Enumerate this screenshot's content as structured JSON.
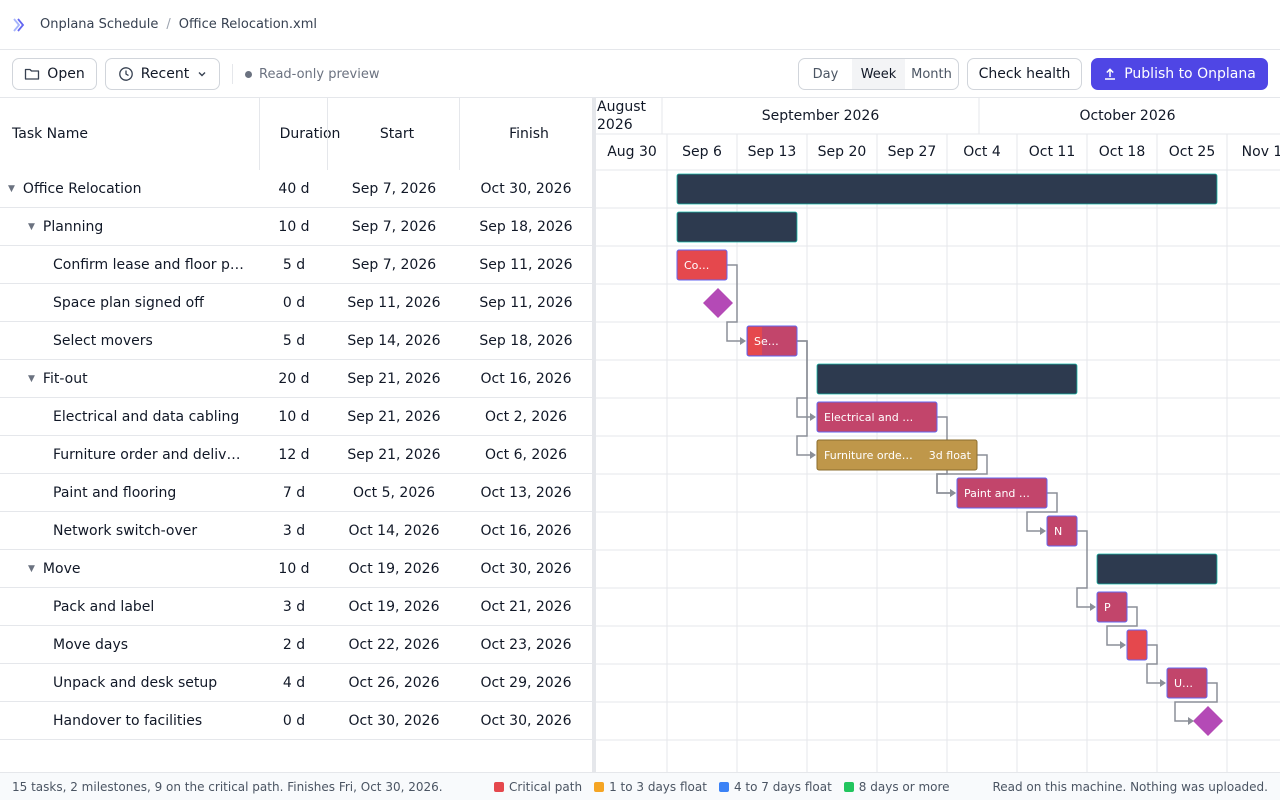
{
  "breadcrumb": {
    "app": "Onplana Schedule",
    "file": "Office Relocation.xml"
  },
  "toolbar": {
    "open_label": "Open",
    "recent_label": "Recent",
    "status_text": "Read-only preview",
    "views": [
      "Day",
      "Week",
      "Month"
    ],
    "active_view": "Week",
    "check_health_label": "Check health",
    "publish_label": "Publish to Onplana"
  },
  "grid": {
    "columns": {
      "name": "Task Name",
      "duration": "Duration",
      "start": "Start",
      "finish": "Finish"
    },
    "rows": [
      {
        "name": "Office Relocation",
        "duration": "40 d",
        "start": "Sep 7, 2026",
        "finish": "Oct 30, 2026",
        "level": 0,
        "summary": true
      },
      {
        "name": "Planning",
        "duration": "10 d",
        "start": "Sep 7, 2026",
        "finish": "Sep 18, 2026",
        "level": 1,
        "summary": true
      },
      {
        "name": "Confirm lease and floor p…",
        "duration": "5 d",
        "start": "Sep 7, 2026",
        "finish": "Sep 11, 2026",
        "level": 2,
        "summary": false
      },
      {
        "name": "Space plan signed off",
        "duration": "0 d",
        "start": "Sep 11, 2026",
        "finish": "Sep 11, 2026",
        "level": 2,
        "summary": false
      },
      {
        "name": "Select movers",
        "duration": "5 d",
        "start": "Sep 14, 2026",
        "finish": "Sep 18, 2026",
        "level": 2,
        "summary": false
      },
      {
        "name": "Fit-out",
        "duration": "20 d",
        "start": "Sep 21, 2026",
        "finish": "Oct 16, 2026",
        "level": 1,
        "summary": true
      },
      {
        "name": "Electrical and data cabling",
        "duration": "10 d",
        "start": "Sep 21, 2026",
        "finish": "Oct 2, 2026",
        "level": 2,
        "summary": false
      },
      {
        "name": "Furniture order and deliv…",
        "duration": "12 d",
        "start": "Sep 21, 2026",
        "finish": "Oct 6, 2026",
        "level": 2,
        "summary": false
      },
      {
        "name": "Paint and flooring",
        "duration": "7 d",
        "start": "Oct 5, 2026",
        "finish": "Oct 13, 2026",
        "level": 2,
        "summary": false
      },
      {
        "name": "Network switch-over",
        "duration": "3 d",
        "start": "Oct 14, 2026",
        "finish": "Oct 16, 2026",
        "level": 2,
        "summary": false
      },
      {
        "name": "Move",
        "duration": "10 d",
        "start": "Oct 19, 2026",
        "finish": "Oct 30, 2026",
        "level": 1,
        "summary": true
      },
      {
        "name": "Pack and label",
        "duration": "3 d",
        "start": "Oct 19, 2026",
        "finish": "Oct 21, 2026",
        "level": 2,
        "summary": false
      },
      {
        "name": "Move days",
        "duration": "2 d",
        "start": "Oct 22, 2026",
        "finish": "Oct 23, 2026",
        "level": 2,
        "summary": false
      },
      {
        "name": "Unpack and desk setup",
        "duration": "4 d",
        "start": "Oct 26, 2026",
        "finish": "Oct 29, 2026",
        "level": 2,
        "summary": false
      },
      {
        "name": "Handover to facilities",
        "duration": "0 d",
        "start": "Oct 30, 2026",
        "finish": "Oct 30, 2026",
        "level": 2,
        "summary": false
      }
    ]
  },
  "timeline": {
    "months": [
      "August 2026",
      "September 2026",
      "October 2026"
    ],
    "weeks": [
      "Aug 30",
      "Sep 6",
      "Sep 13",
      "Sep 20",
      "Sep 27",
      "Oct 4",
      "Oct 11",
      "Oct 18",
      "Oct 25",
      "Nov 1"
    ],
    "bar_labels": [
      "Co…",
      "Se…",
      "Electrical and …",
      "Furniture orde…",
      "Paint and …",
      "N",
      "P",
      "U…"
    ],
    "float_label": "3d float"
  },
  "footer": {
    "summary": "15 tasks, 2 milestones, 9 on the critical path. Finishes Fri, Oct 30, 2026.",
    "legend": [
      {
        "label": "Critical path",
        "color": "#e5484d"
      },
      {
        "label": "1 to 3 days float",
        "color": "#f5a524"
      },
      {
        "label": "4 to 7 days float",
        "color": "#3b82f6"
      },
      {
        "label": "8 days or more",
        "color": "#22c55e"
      }
    ],
    "note": "Read on this machine. Nothing was uploaded."
  },
  "colors": {
    "accent": "#4f46e5",
    "summary_bar": "#2d3a4f",
    "critical_bar": "#e5484d",
    "critical_bar_alt": "#c2456b",
    "float_bar": "#bf974a",
    "milestone": "#b44ab6"
  }
}
